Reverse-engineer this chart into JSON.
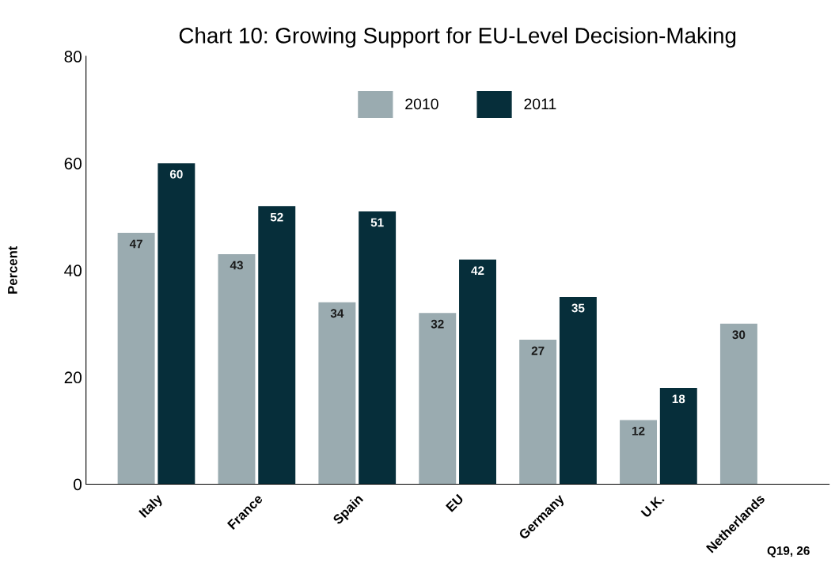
{
  "chart_data": {
    "type": "bar",
    "title": "Chart 10: Growing Support for EU-Level Decision-Making",
    "ylabel": "Percent",
    "categories": [
      "Italy",
      "France",
      "Spain",
      "EU",
      "Germany",
      "U.K.",
      "Netherlands"
    ],
    "series": [
      {
        "name": "2010",
        "color": "#9aabb0",
        "values": [
          47,
          43,
          34,
          32,
          27,
          12,
          30
        ]
      },
      {
        "name": "2011",
        "color": "#062e3a",
        "values": [
          60,
          52,
          51,
          42,
          35,
          18,
          null
        ]
      }
    ],
    "ylim": [
      0,
      80
    ],
    "yticks": [
      0,
      20,
      40,
      60,
      80
    ],
    "grid": false,
    "legend": "top",
    "data_labels": true,
    "annotations": [
      "Q19, 26"
    ]
  }
}
